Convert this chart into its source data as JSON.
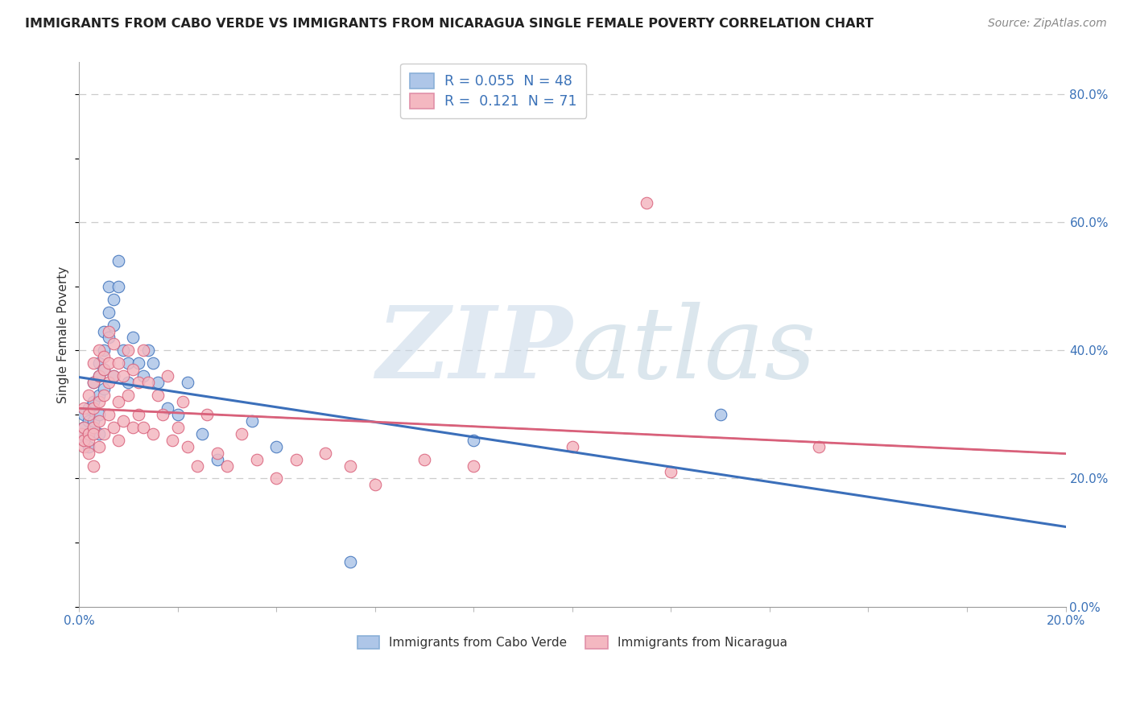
{
  "title": "IMMIGRANTS FROM CABO VERDE VS IMMIGRANTS FROM NICARAGUA SINGLE FEMALE POVERTY CORRELATION CHART",
  "source_text": "Source: ZipAtlas.com",
  "ylabel": "Single Female Poverty",
  "xlim": [
    0.0,
    0.2
  ],
  "ylim": [
    0.0,
    0.85
  ],
  "x_ticks": [
    0.0,
    0.02,
    0.04,
    0.06,
    0.08,
    0.1,
    0.12,
    0.14,
    0.16,
    0.18,
    0.2
  ],
  "cabo_verde_R": 0.055,
  "cabo_verde_N": 48,
  "nicaragua_R": 0.121,
  "nicaragua_N": 71,
  "cabo_verde_color": "#aec6e8",
  "nicaragua_color": "#f4b8c1",
  "cabo_verde_line_color": "#3b6fba",
  "nicaragua_line_color": "#d9607a",
  "legend_text_color": "#3b72b8",
  "background_color": "#ffffff",
  "cabo_verde_x": [
    0.0005,
    0.001,
    0.001,
    0.001,
    0.002,
    0.002,
    0.002,
    0.002,
    0.003,
    0.003,
    0.003,
    0.003,
    0.004,
    0.004,
    0.004,
    0.004,
    0.004,
    0.005,
    0.005,
    0.005,
    0.005,
    0.006,
    0.006,
    0.006,
    0.007,
    0.007,
    0.007,
    0.008,
    0.008,
    0.009,
    0.01,
    0.01,
    0.011,
    0.012,
    0.013,
    0.014,
    0.015,
    0.016,
    0.018,
    0.02,
    0.022,
    0.025,
    0.028,
    0.035,
    0.04,
    0.055,
    0.08,
    0.13
  ],
  "cabo_verde_y": [
    0.27,
    0.28,
    0.26,
    0.3,
    0.25,
    0.29,
    0.31,
    0.27,
    0.28,
    0.32,
    0.35,
    0.29,
    0.36,
    0.33,
    0.38,
    0.3,
    0.27,
    0.37,
    0.4,
    0.34,
    0.43,
    0.46,
    0.5,
    0.42,
    0.48,
    0.36,
    0.44,
    0.5,
    0.54,
    0.4,
    0.38,
    0.35,
    0.42,
    0.38,
    0.36,
    0.4,
    0.38,
    0.35,
    0.31,
    0.3,
    0.35,
    0.27,
    0.23,
    0.29,
    0.25,
    0.07,
    0.26,
    0.3
  ],
  "nicaragua_x": [
    0.0005,
    0.001,
    0.001,
    0.001,
    0.001,
    0.002,
    0.002,
    0.002,
    0.002,
    0.002,
    0.003,
    0.003,
    0.003,
    0.003,
    0.003,
    0.003,
    0.004,
    0.004,
    0.004,
    0.004,
    0.004,
    0.005,
    0.005,
    0.005,
    0.005,
    0.006,
    0.006,
    0.006,
    0.006,
    0.007,
    0.007,
    0.007,
    0.008,
    0.008,
    0.008,
    0.009,
    0.009,
    0.01,
    0.01,
    0.011,
    0.011,
    0.012,
    0.012,
    0.013,
    0.013,
    0.014,
    0.015,
    0.016,
    0.017,
    0.018,
    0.019,
    0.02,
    0.021,
    0.022,
    0.024,
    0.026,
    0.028,
    0.03,
    0.033,
    0.036,
    0.04,
    0.044,
    0.05,
    0.055,
    0.06,
    0.07,
    0.08,
    0.1,
    0.12,
    0.15,
    0.115
  ],
  "nicaragua_y": [
    0.27,
    0.25,
    0.28,
    0.31,
    0.26,
    0.24,
    0.27,
    0.3,
    0.33,
    0.26,
    0.28,
    0.31,
    0.35,
    0.27,
    0.22,
    0.38,
    0.25,
    0.29,
    0.36,
    0.4,
    0.32,
    0.27,
    0.33,
    0.39,
    0.37,
    0.3,
    0.43,
    0.38,
    0.35,
    0.28,
    0.41,
    0.36,
    0.26,
    0.32,
    0.38,
    0.29,
    0.36,
    0.33,
    0.4,
    0.28,
    0.37,
    0.3,
    0.35,
    0.28,
    0.4,
    0.35,
    0.27,
    0.33,
    0.3,
    0.36,
    0.26,
    0.28,
    0.32,
    0.25,
    0.22,
    0.3,
    0.24,
    0.22,
    0.27,
    0.23,
    0.2,
    0.23,
    0.24,
    0.22,
    0.19,
    0.23,
    0.22,
    0.25,
    0.21,
    0.25,
    0.63
  ]
}
